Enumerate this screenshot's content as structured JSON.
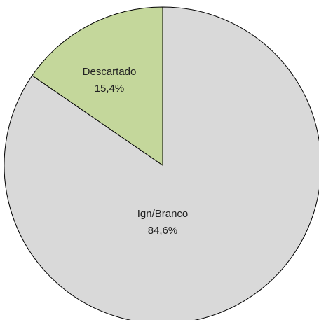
{
  "chart_data": {
    "type": "pie",
    "title": "",
    "slices": [
      {
        "label": "Ign/Branco",
        "percent_label": "84,6%",
        "value": 84.6,
        "color": "#d9d9d9"
      },
      {
        "label": "Descartado",
        "percent_label": "15,4%",
        "value": 15.4,
        "color": "#c4d79b"
      }
    ],
    "start_angle_deg": 0,
    "direction": "clockwise-from-top (first slice starts at 12 o'clock going clockwise)",
    "edge_color": "#000000",
    "legend": "none"
  }
}
